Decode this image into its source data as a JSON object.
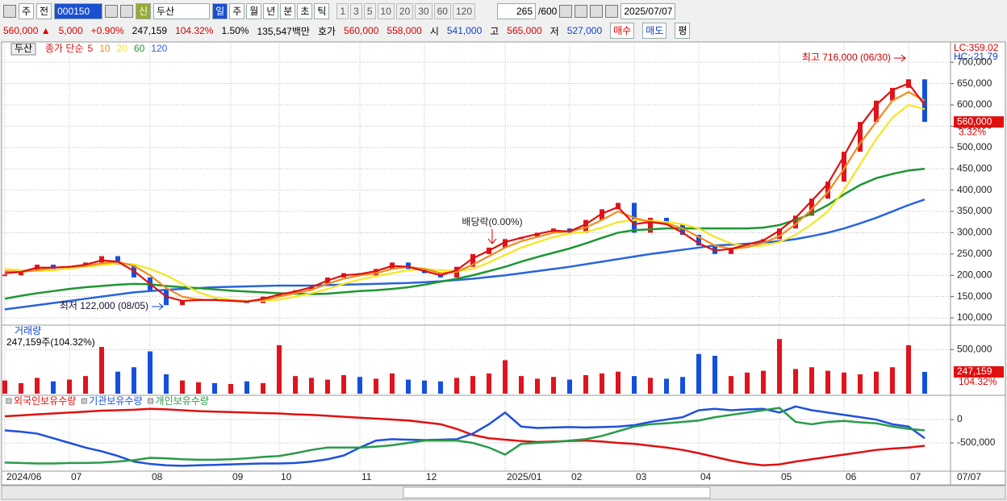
{
  "toolbar": {
    "market": "주",
    "prev": "전",
    "code": "000150",
    "name_badge": "신",
    "name": "두산",
    "periods": [
      "일",
      "주",
      "월",
      "년",
      "분",
      "초",
      "틱"
    ],
    "intervals": [
      "1",
      "3",
      "5",
      "10",
      "20",
      "30",
      "60",
      "120"
    ],
    "count": "265",
    "max": "/600",
    "date": "2025/07/07"
  },
  "quote": {
    "price": "560,000 ▲",
    "change": "5,000",
    "change_pct": "+0.90%",
    "volume": "247,159",
    "volume_pct": "104.32%",
    "turnover": "1.50%",
    "amount": "135,547백만",
    "ask_label": "호가",
    "ask": "560,000",
    "bid": "558,000",
    "open_label": "시",
    "open": "541,000",
    "high_label": "고",
    "high": "565,000",
    "low_label": "저",
    "low": "527,000",
    "buy": "매수",
    "sell": "매도",
    "avg": "평"
  },
  "x_axis_end": "07/07",
  "chart_data": [
    {
      "type": "candlestick",
      "name": "두산",
      "legend_prefix": "종가 단순",
      "categories": [
        "2024/06",
        null,
        null,
        null,
        "07",
        null,
        null,
        null,
        null,
        "08",
        null,
        null,
        null,
        null,
        "09",
        null,
        null,
        "10",
        null,
        null,
        null,
        null,
        "11",
        null,
        null,
        null,
        "12",
        null,
        null,
        null,
        null,
        "2025/01",
        null,
        null,
        null,
        "02",
        null,
        null,
        null,
        "03",
        null,
        null,
        null,
        "04",
        null,
        null,
        null,
        null,
        "05",
        null,
        null,
        null,
        "06",
        null,
        null,
        null,
        "07",
        null
      ],
      "close": [
        200000,
        210000,
        225000,
        215000,
        220000,
        230000,
        245000,
        225000,
        195000,
        165000,
        130000,
        140000,
        145000,
        140000,
        140000,
        135000,
        150000,
        160000,
        165000,
        175000,
        195000,
        205000,
        200000,
        215000,
        230000,
        215000,
        205000,
        195000,
        220000,
        250000,
        265000,
        285000,
        290000,
        300000,
        310000,
        300000,
        330000,
        355000,
        370000,
        300000,
        335000,
        320000,
        295000,
        270000,
        250000,
        265000,
        275000,
        285000,
        310000,
        340000,
        380000,
        420000,
        490000,
        560000,
        610000,
        640000,
        660000,
        560000
      ],
      "up_color": "#e0141e",
      "down_color": "#1450dc",
      "series": [
        {
          "name": "5",
          "color": "#e01010",
          "values": [
            205000,
            208000,
            218000,
            218000,
            220000,
            225000,
            235000,
            232000,
            210000,
            180000,
            150000,
            140000,
            142000,
            142000,
            140000,
            138000,
            145000,
            155000,
            162000,
            172000,
            188000,
            200000,
            203000,
            210000,
            222000,
            220000,
            210000,
            200000,
            212000,
            240000,
            258000,
            278000,
            288000,
            297000,
            305000,
            303000,
            320000,
            345000,
            360000,
            320000,
            325000,
            320000,
            300000,
            275000,
            258000,
            262000,
            272000,
            282000,
            305000,
            335000,
            375000,
            415000,
            480000,
            550000,
            600000,
            635000,
            650000,
            600000
          ]
        },
        {
          "name": "10",
          "color": "#f08c1e",
          "values": [
            210000,
            208000,
            212000,
            218000,
            220000,
            222000,
            228000,
            232000,
            222000,
            200000,
            170000,
            150000,
            143000,
            142000,
            141000,
            139000,
            142000,
            150000,
            158000,
            166000,
            180000,
            192000,
            200000,
            205000,
            215000,
            220000,
            215000,
            205000,
            208000,
            225000,
            245000,
            265000,
            280000,
            290000,
            300000,
            303000,
            312000,
            330000,
            350000,
            335000,
            325000,
            322000,
            310000,
            290000,
            270000,
            262000,
            266000,
            276000,
            292000,
            320000,
            355000,
            395000,
            450000,
            510000,
            560000,
            610000,
            630000,
            610000
          ]
        },
        {
          "name": "20",
          "color": "#f5e61e",
          "values": [
            215000,
            212000,
            210000,
            212000,
            216000,
            220000,
            224000,
            228000,
            226000,
            215000,
            200000,
            180000,
            160000,
            148000,
            143000,
            140000,
            140000,
            143000,
            150000,
            158000,
            168000,
            180000,
            190000,
            198000,
            205000,
            212000,
            215000,
            212000,
            210000,
            215000,
            230000,
            248000,
            265000,
            278000,
            290000,
            298000,
            302000,
            312000,
            325000,
            330000,
            328000,
            325000,
            320000,
            310000,
            290000,
            275000,
            268000,
            270000,
            278000,
            295000,
            320000,
            350000,
            400000,
            460000,
            520000,
            570000,
            600000,
            590000
          ]
        },
        {
          "name": "60",
          "color": "#1e9632",
          "values": [
            145000,
            152000,
            158000,
            163000,
            168000,
            172000,
            175000,
            178000,
            180000,
            179000,
            175000,
            172000,
            170000,
            167000,
            164000,
            162000,
            160000,
            158000,
            157000,
            156000,
            157000,
            160000,
            163000,
            165000,
            168000,
            172000,
            178000,
            185000,
            192000,
            200000,
            210000,
            220000,
            232000,
            243000,
            253000,
            263000,
            275000,
            288000,
            300000,
            306000,
            308000,
            310000,
            310000,
            310000,
            310000,
            310000,
            310000,
            312000,
            318000,
            330000,
            345000,
            365000,
            390000,
            412000,
            428000,
            438000,
            446000,
            450000
          ]
        },
        {
          "name": "120",
          "color": "#2864dc",
          "values": [
            120000,
            125000,
            130000,
            135000,
            140000,
            145000,
            150000,
            155000,
            160000,
            163000,
            166000,
            168000,
            170000,
            172000,
            173000,
            174000,
            175000,
            176000,
            176000,
            176000,
            177000,
            178000,
            179000,
            180000,
            181000,
            182000,
            184000,
            186000,
            189000,
            192000,
            196000,
            200000,
            205000,
            210000,
            215000,
            220000,
            226000,
            232000,
            238000,
            244000,
            250000,
            255000,
            260000,
            265000,
            270000,
            272000,
            274000,
            277000,
            280000,
            285000,
            292000,
            300000,
            310000,
            322000,
            335000,
            350000,
            365000,
            378000
          ]
        }
      ],
      "ylim": [
        85000,
        742000
      ],
      "yticks": [
        {
          "value": 100000,
          "label": "100,000"
        },
        {
          "value": 150000,
          "label": "150,000"
        },
        {
          "value": 200000,
          "label": "200,000"
        },
        {
          "value": 250000,
          "label": "250,000"
        },
        {
          "value": 300000,
          "label": "300,000"
        },
        {
          "value": 350000,
          "label": "350,000"
        },
        {
          "value": 400000,
          "label": "400,000"
        },
        {
          "value": 450000,
          "label": "450,000"
        },
        {
          "value": 500000,
          "label": "500,000"
        },
        {
          "value": 550000,
          "label": "550,000"
        },
        {
          "value": 600000,
          "label": "600,000"
        },
        {
          "value": 650000,
          "label": "650,000"
        },
        {
          "value": 700000,
          "label": "700,000"
        }
      ],
      "grid": true,
      "annotations": {
        "high": "최고 716,000 (06/30)",
        "low": "최저 122,000 (08/05)",
        "dividend": "배당락(0.00%)"
      },
      "last_price": {
        "value": 560000,
        "label": "560,000"
      },
      "change_pct": "3.32%",
      "lc": "LC:359.02",
      "hc": "HC:-21.79"
    },
    {
      "type": "bar",
      "title": "거래량",
      "subtitle": "247,159주(104.32%)",
      "values": [
        150000,
        120000,
        180000,
        140000,
        160000,
        200000,
        530000,
        250000,
        300000,
        480000,
        220000,
        150000,
        130000,
        120000,
        110000,
        140000,
        120000,
        550000,
        200000,
        180000,
        160000,
        210000,
        190000,
        170000,
        230000,
        160000,
        150000,
        140000,
        180000,
        200000,
        230000,
        380000,
        200000,
        170000,
        190000,
        160000,
        210000,
        230000,
        250000,
        200000,
        180000,
        170000,
        190000,
        450000,
        430000,
        200000,
        240000,
        260000,
        620000,
        280000,
        300000,
        260000,
        240000,
        220000,
        250000,
        300000,
        550000,
        247159
      ],
      "ylim": [
        0,
        750000
      ],
      "yticks": [
        {
          "value": 500000,
          "label": "500,000"
        }
      ],
      "grid": true,
      "last": {
        "value": 247159,
        "label": "247,159"
      },
      "last_pct": "104.32%"
    },
    {
      "type": "line",
      "series": [
        {
          "name": "외국인보유수량",
          "color": "#e01010",
          "values": [
            70000,
            90000,
            110000,
            130000,
            150000,
            170000,
            190000,
            200000,
            210000,
            230000,
            220000,
            200000,
            180000,
            170000,
            160000,
            150000,
            140000,
            130000,
            110000,
            100000,
            80000,
            60000,
            40000,
            20000,
            0,
            -20000,
            -60000,
            -100000,
            -200000,
            -330000,
            -400000,
            -430000,
            -460000,
            -480000,
            -470000,
            -460000,
            -450000,
            -470000,
            -500000,
            -520000,
            -560000,
            -600000,
            -650000,
            -720000,
            -800000,
            -880000,
            -940000,
            -980000,
            -960000,
            -900000,
            -850000,
            -800000,
            -750000,
            -700000,
            -650000,
            -620000,
            -600000,
            -560000
          ]
        },
        {
          "name": "기관보유수량",
          "color": "#1e50dc",
          "values": [
            -233000,
            -260000,
            -300000,
            -400000,
            -500000,
            -600000,
            -680000,
            -780000,
            -900000,
            -950000,
            -980000,
            -990000,
            -980000,
            -970000,
            -960000,
            -950000,
            -940000,
            -940000,
            -930000,
            -900000,
            -850000,
            -770000,
            -600000,
            -450000,
            -420000,
            -430000,
            -440000,
            -430000,
            -420000,
            -300000,
            -100000,
            150000,
            -150000,
            -180000,
            -170000,
            -160000,
            -170000,
            -160000,
            -150000,
            -120000,
            -50000,
            0,
            50000,
            200000,
            230000,
            200000,
            220000,
            230000,
            150000,
            280000,
            200000,
            150000,
            100000,
            50000,
            0,
            -100000,
            -150000,
            -400000
          ]
        },
        {
          "name": "개인보유수량",
          "color": "#2a9a4a",
          "values": [
            -920000,
            -930000,
            -940000,
            -940000,
            -930000,
            -930000,
            -920000,
            -900000,
            -870000,
            -820000,
            -830000,
            -850000,
            -860000,
            -860000,
            -850000,
            -830000,
            -800000,
            -780000,
            -720000,
            -650000,
            -600000,
            -600000,
            -600000,
            -580000,
            -550000,
            -500000,
            -450000,
            -450000,
            -450000,
            -500000,
            -600000,
            -750000,
            -520000,
            -500000,
            -480000,
            -450000,
            -420000,
            -350000,
            -250000,
            -150000,
            -100000,
            -80000,
            -50000,
            -20000,
            50000,
            100000,
            150000,
            200000,
            250000,
            -50000,
            -100000,
            -50000,
            -30000,
            -60000,
            -80000,
            -150000,
            -200000,
            -230000
          ]
        }
      ],
      "ylim": [
        -1070000,
        450000
      ],
      "yticks": [
        0,
        {
          "value": -500000,
          "label": "-500,000"
        }
      ],
      "grid": true
    }
  ]
}
